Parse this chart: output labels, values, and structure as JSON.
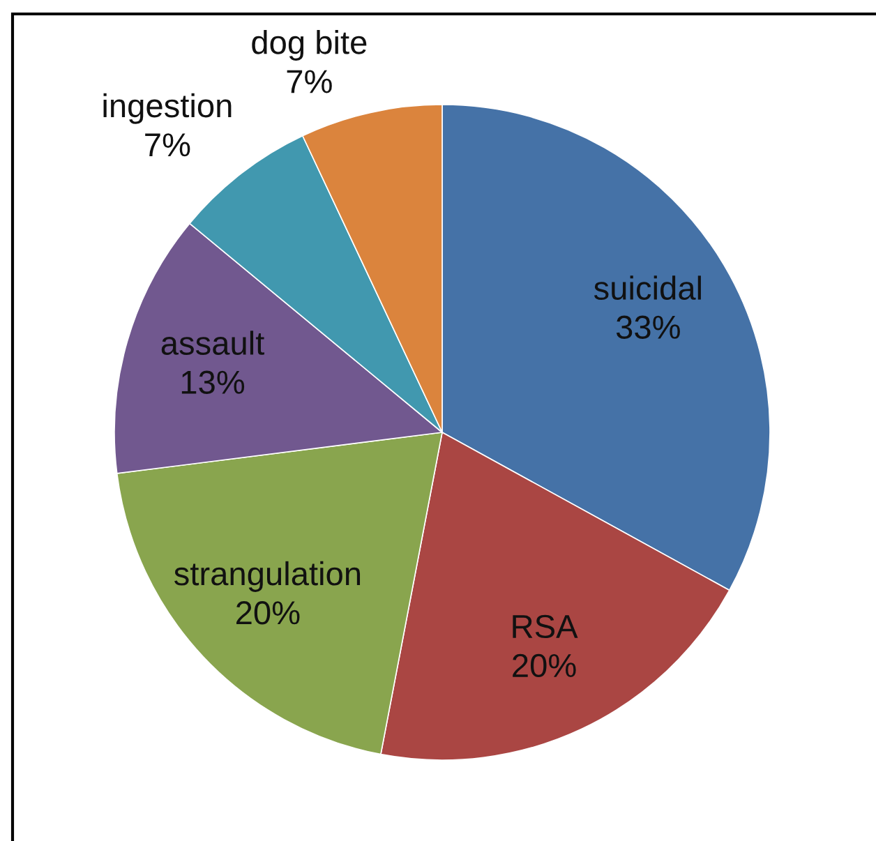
{
  "chart_data": {
    "type": "pie",
    "categories": [
      "suicidal",
      "RSA",
      "strangulation",
      "assault",
      "ingestion",
      "dog bite"
    ],
    "values": [
      33,
      20,
      20,
      13,
      7,
      7
    ],
    "colors": [
      "#4572a7",
      "#aa4643",
      "#89a54e",
      "#71588f",
      "#4198af",
      "#db843d"
    ],
    "value_labels": [
      "33%",
      "20%",
      "20%",
      "13%",
      "7%",
      "7%"
    ]
  }
}
